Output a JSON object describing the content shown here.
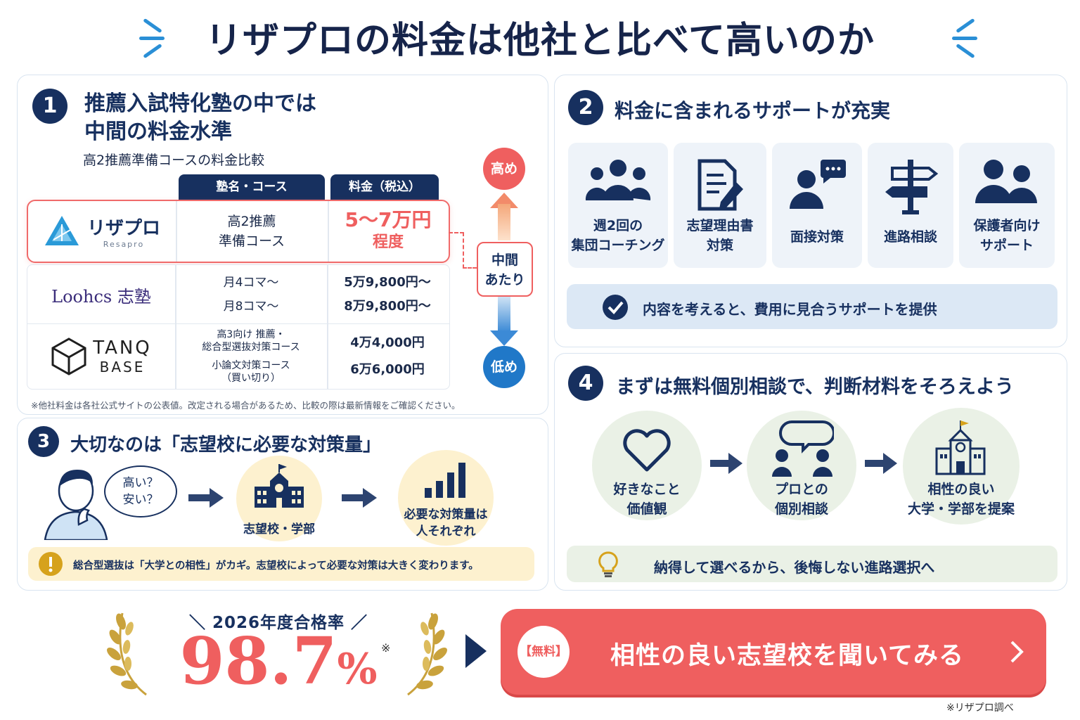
{
  "header": {
    "title": "リザプロの料金は他社と比べて高いのか"
  },
  "panel1": {
    "num": "1",
    "title_line1": "推薦入試特化塾の中では",
    "title_line2": "中間の料金水準",
    "subtitle": "高2推薦準備コースの料金比較",
    "col_course": "塾名・コース",
    "col_price": "料金（税込）",
    "rows": [
      {
        "name": "リザプロ",
        "name_sub": "Resapro",
        "course_l1": "高2推薦",
        "course_l2": "準備コース",
        "price_l1": "5〜7万円",
        "price_l2": "程度"
      },
      {
        "name": "Loohcs 志塾",
        "course_l1": "月4コマ〜",
        "course_l2": "月8コマ〜",
        "price_l1": "5万9,800円〜",
        "price_l2": "8万9,800円〜"
      },
      {
        "name": "TANQ",
        "name_sub": "BASE",
        "course_l1": "高3向け 推薦・",
        "course_l2": "総合型選抜対策コース",
        "course_l3": "小論文対策コース",
        "course_l4": "（買い切り）",
        "price_l1": "4万4,000円",
        "price_l2": "6万6,000円"
      }
    ],
    "scale_high": "高め",
    "scale_mid_l1": "中間",
    "scale_mid_l2": "あたり",
    "scale_low": "低め",
    "note": "※他社料金は各社公式サイトの公表値。改定される場合があるため、比較の際は最新情報をご確認ください。"
  },
  "panel2": {
    "num": "2",
    "title": "料金に含まれるサポートが充実",
    "cards": [
      {
        "icon": "group-icon",
        "l1": "週2回の",
        "l2": "集団コーチング"
      },
      {
        "icon": "document-pen-icon",
        "l1": "志望理由書",
        "l2": "対策"
      },
      {
        "icon": "interview-icon",
        "l1": "面接対策",
        "l2": ""
      },
      {
        "icon": "signpost-icon",
        "l1": "進路相談",
        "l2": ""
      },
      {
        "icon": "parents-icon",
        "l1": "保護者向け",
        "l2": "サポート"
      }
    ],
    "banner": "内容を考えると、費用に見合うサポートを提供"
  },
  "panel3": {
    "num": "3",
    "title": "大切なのは「志望校に必要な対策量」",
    "bubble_l1": "高い？",
    "bubble_l2": "安い？",
    "step2": "志望校・学部",
    "step3_l1": "必要な対策量は",
    "step3_l2": "人それぞれ",
    "warning": "総合型選抜は「大学との相性」がカギ。志望校によって必要な対策は大きく変わります。"
  },
  "panel4": {
    "num": "4",
    "title": "まずは無料個別相談で、判断材料をそろえよう",
    "steps": [
      {
        "icon": "heart-icon",
        "l1": "好きなこと",
        "l2": "価値観"
      },
      {
        "icon": "consult-icon",
        "l1": "プロとの",
        "l2": "個別相談"
      },
      {
        "icon": "school-icon",
        "l1": "相性の良い",
        "l2": "大学・学部を提案"
      }
    ],
    "banner": "納得して選べるから、後悔しない進路選択へ"
  },
  "footer": {
    "rate_label": "＼ 2026年度合格率 ／",
    "rate_value": "98.7",
    "rate_unit": "%",
    "rate_mark": "※",
    "cta_badge": "【無料】",
    "cta_text": "相性の良い志望校を聞いてみる",
    "source": "※リザプロ調べ"
  },
  "colors": {
    "navy": "#17305f",
    "accent_red": "#ef5f5f",
    "accent_blue": "#2a8fd6",
    "gold": "#c9a23c"
  }
}
